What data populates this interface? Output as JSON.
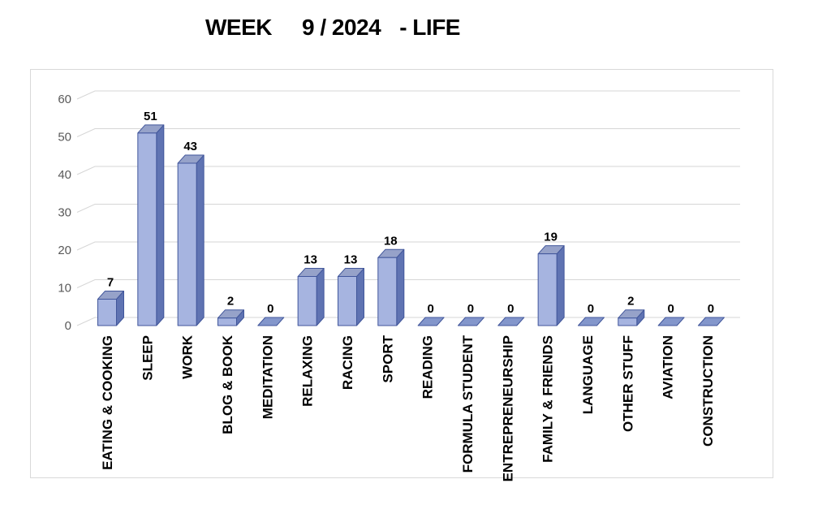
{
  "title": {
    "part1": "WEEK",
    "part2": "9 / 2024",
    "part3": "- LIFE"
  },
  "chart_data": {
    "type": "bar",
    "style": "3d",
    "title": "WEEK 9 / 2024 - LIFE",
    "categories": [
      "EATING & COOKING",
      "SLEEP",
      "WORK",
      "BLOG & BOOK",
      "MEDITATION",
      "RELAXING",
      "RACING",
      "SPORT",
      "READING",
      "FORMULA STUDENT",
      "ENTREPRENEURSHIP",
      "FAMILY & FRIENDS",
      "LANGUAGE",
      "OTHER STUFF",
      "AVIATION",
      "CONSTRUCTION"
    ],
    "values": [
      7,
      51,
      43,
      2,
      0,
      13,
      13,
      18,
      0,
      0,
      0,
      19,
      0,
      2,
      0,
      0
    ],
    "data_labels": [
      "7",
      "51",
      "43",
      "2",
      "0",
      "13",
      "13",
      "18",
      "0",
      "0",
      "0",
      "19",
      "0",
      "2",
      "0",
      "0"
    ],
    "yticks": [
      0,
      10,
      20,
      30,
      40,
      50,
      60
    ],
    "ylim": [
      0,
      60
    ],
    "xlabel": "",
    "ylabel": "",
    "grid": true,
    "legend": "none"
  },
  "colors": {
    "bar_front": "#a6b4e0",
    "bar_side": "#5f73b2",
    "bar_top": "#96a2c9",
    "bar_zero": "#8396cb",
    "bar_stroke": "#41569b",
    "gridline": "#d6d6d6",
    "axis_text": "#595959",
    "label_text": "#000000",
    "frame_border": "#d9d9d9",
    "background": "#ffffff"
  }
}
